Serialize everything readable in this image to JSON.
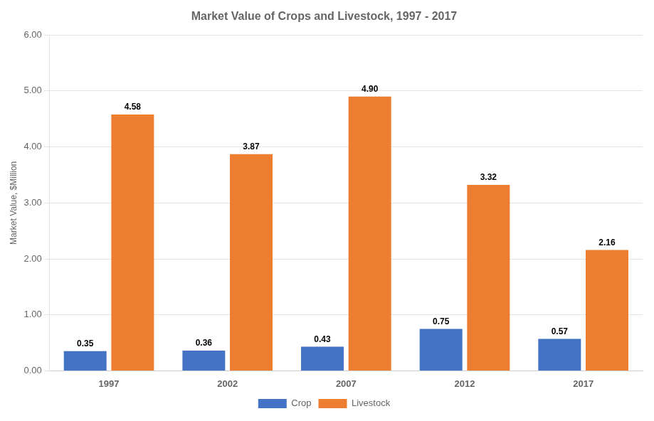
{
  "chart_data": {
    "type": "bar",
    "title": "Market Value of Crops and Livestock, 1997 - 2017",
    "ylabel": "Market Value, $Million",
    "categories": [
      "1997",
      "2002",
      "2007",
      "2012",
      "2017"
    ],
    "series": [
      {
        "name": "Crop",
        "color": "#4472C4",
        "values": [
          0.35,
          0.36,
          0.43,
          0.75,
          0.57
        ],
        "value_labels": [
          "0.35",
          "0.36",
          "0.43",
          "0.75",
          "0.57"
        ]
      },
      {
        "name": "Livestock",
        "color": "#ED7D31",
        "values": [
          4.58,
          3.87,
          4.9,
          3.32,
          2.16
        ],
        "value_labels": [
          "4.58",
          "3.87",
          "4.90",
          "3.32",
          "2.16"
        ]
      }
    ],
    "ylim": [
      0.0,
      6.0
    ],
    "yticks": [
      {
        "value": 0.0,
        "label": "0.00"
      },
      {
        "value": 1.0,
        "label": "1.00"
      },
      {
        "value": 2.0,
        "label": "2.00"
      },
      {
        "value": 3.0,
        "label": "3.00"
      },
      {
        "value": 4.0,
        "label": "4.00"
      },
      {
        "value": 5.0,
        "label": "5.00"
      },
      {
        "value": 6.0,
        "label": "6.00"
      }
    ],
    "grid": true,
    "legend": "bottom",
    "data_labels": true
  }
}
